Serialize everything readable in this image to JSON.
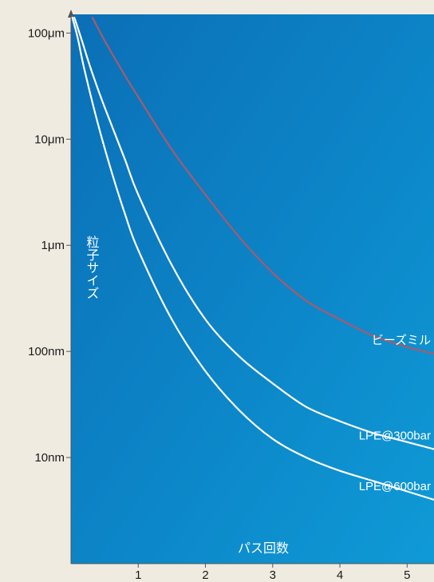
{
  "chart_data": {
    "type": "line",
    "title": "",
    "xlabel": "パス回数",
    "ylabel": "粒子サイズ",
    "xlim": [
      0,
      5.4
    ],
    "ylim": [
      1,
      150000
    ],
    "yscale": "log",
    "grid": false,
    "x_ticks": [
      {
        "value": 1,
        "label": "1"
      },
      {
        "value": 2,
        "label": "2"
      },
      {
        "value": 3,
        "label": "3"
      },
      {
        "value": 4,
        "label": "4"
      },
      {
        "value": 5,
        "label": "5"
      }
    ],
    "y_ticks": [
      {
        "value": 100000,
        "label": "100μm"
      },
      {
        "value": 10000,
        "label": "10μm"
      },
      {
        "value": 1000,
        "label": "1μm"
      },
      {
        "value": 100,
        "label": "100nm"
      },
      {
        "value": 10,
        "label": "10nm"
      }
    ],
    "series": [
      {
        "name": "ビーズミル",
        "color": "#a85a6e",
        "x": [
          0.32,
          0.5,
          0.8,
          1.0,
          1.5,
          2.0,
          2.5,
          3.0,
          3.5,
          4.0,
          4.5,
          5.0,
          5.4
        ],
        "y": [
          140000,
          85000,
          40000,
          25000,
          8000,
          3000,
          1200,
          550,
          300,
          200,
          140,
          110,
          95
        ]
      },
      {
        "name": "LPE@300bar",
        "color": "#ffffff",
        "x": [
          0.05,
          0.15,
          0.3,
          0.5,
          0.8,
          1.0,
          1.5,
          2.0,
          2.5,
          3.0,
          3.5,
          4.0,
          4.5,
          5.0,
          5.4
        ],
        "y": [
          140000,
          90000,
          45000,
          20000,
          6500,
          3000,
          650,
          200,
          90,
          50,
          30,
          22,
          17,
          14,
          12
        ]
      },
      {
        "name": "LPE@600bar",
        "color": "#ffffff",
        "x": [
          0.02,
          0.1,
          0.2,
          0.4,
          0.6,
          0.8,
          1.0,
          1.5,
          2.0,
          2.5,
          3.0,
          3.5,
          4.0,
          4.5,
          5.0,
          5.4
        ],
        "y": [
          140000,
          90000,
          45000,
          14000,
          5000,
          2000,
          900,
          200,
          65,
          28,
          15,
          10,
          7.5,
          6,
          4.8,
          4
        ]
      }
    ]
  }
}
